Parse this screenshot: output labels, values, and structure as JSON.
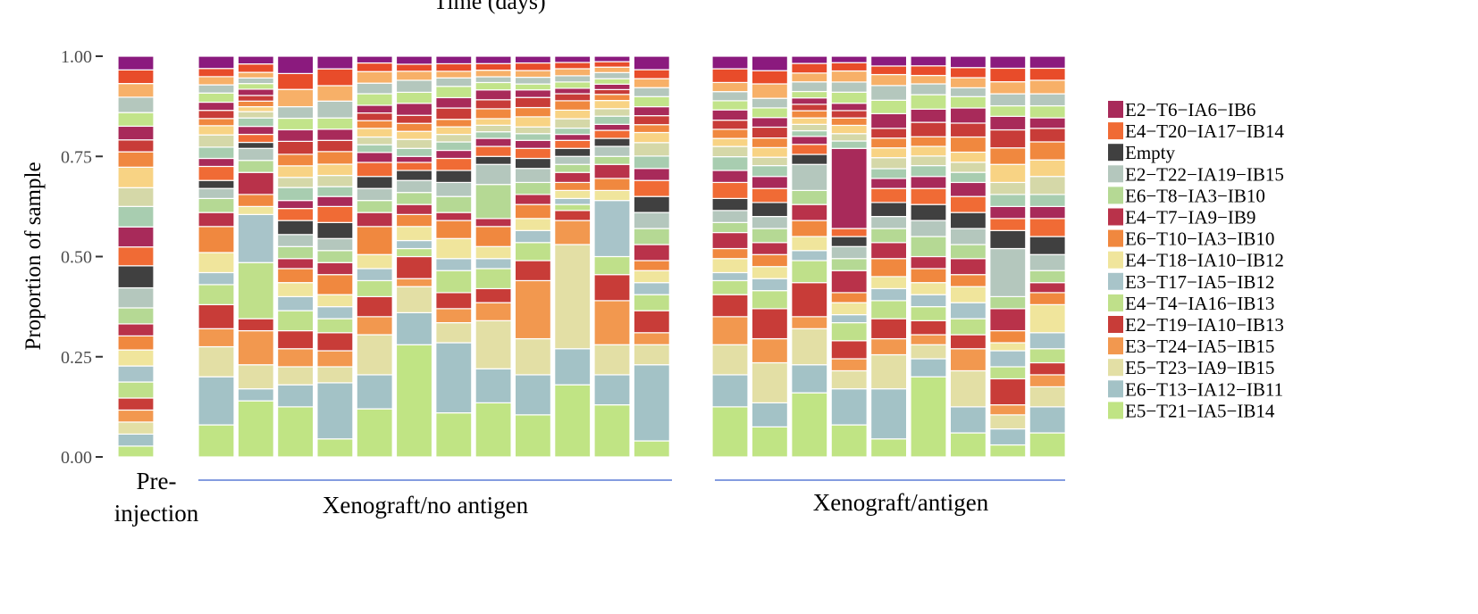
{
  "chart_data": {
    "type": "bar",
    "stacked": true,
    "title": "Time (days)",
    "xlabel": "",
    "ylabel": "Proportion of sample",
    "ylim": [
      0,
      1
    ],
    "yticks": [
      "0.00",
      "0.25",
      "0.50",
      "0.75",
      "1.00"
    ],
    "ytick_values": [
      0,
      0.25,
      0.5,
      0.75,
      1
    ],
    "groups": [
      {
        "label": "Pre-\ninjection",
        "label_lines": [
          "Pre-",
          "injection"
        ],
        "bars": 1,
        "underline": false
      },
      {
        "label": "Xenograft/no antigen",
        "label_lines": [
          "Xenograft/no antigen"
        ],
        "bars": 12,
        "underline": true
      },
      {
        "label": "Xenograft/antigen",
        "label_lines": [
          "Xenograft/antigen"
        ],
        "bars": 9,
        "underline": true
      }
    ],
    "series": [
      {
        "name": "E5−T21−IA5−IB14",
        "color": "#c0e484"
      },
      {
        "name": "E6−T13−IA12−IB11",
        "color": "#a3c2c6"
      },
      {
        "name": "E5−T23−IA9−IB15",
        "color": "#e3dfa5"
      },
      {
        "name": "E3−T24−IA5−IB15",
        "color": "#f2984f"
      },
      {
        "name": "E2−T19−IA10−IB13",
        "color": "#c83c38"
      },
      {
        "name": "E4−T4−IA16−IB13",
        "color": "#bfe08a"
      },
      {
        "name": "E3−T17−IA5−IB12",
        "color": "#a8c4c9"
      },
      {
        "name": "E4−T18−IA10−IB12",
        "color": "#f0e59c"
      },
      {
        "name": "E6−T10−IA3−IB10",
        "color": "#f0883f"
      },
      {
        "name": "E4−T7−IA9−IB9",
        "color": "#b9324a"
      },
      {
        "name": "E6−T8−IA3−IB10",
        "color": "#b5d994"
      },
      {
        "name": "E2−T22−IA19−IB15",
        "color": "#b4c7bd"
      },
      {
        "name": "Empty",
        "color": "#404040"
      },
      {
        "name": "E4−T20−IA17−IB14",
        "color": "#f06b35"
      },
      {
        "name": "E2−T6−IA6−IB6",
        "color": "#a82a5a"
      }
    ],
    "other_clones": {
      "colors": [
        "#a8cdb0",
        "#d5d8a8",
        "#f8d384",
        "#f0883f",
        "#c83c38",
        "#a82a5a",
        "#c2e48a",
        "#b4c7bd",
        "#f7b068",
        "#e84c2a",
        "#8b1a7e"
      ],
      "weights": [
        0.12,
        0.11,
        0.12,
        0.09,
        0.07,
        0.08,
        0.08,
        0.09,
        0.08,
        0.08,
        0.08
      ]
    },
    "bars": [
      [
        0.027,
        0.03,
        0.03,
        0.03,
        0.03,
        0.04,
        0.04,
        0.04,
        0.035,
        0.03,
        0.04,
        0.05,
        0.055,
        0.047,
        0.05
      ],
      [
        0.08,
        0.12,
        0.075,
        0.045,
        0.06,
        0.05,
        0.03,
        0.05,
        0.065,
        0.035,
        0.035,
        0.025,
        0.02,
        0.035,
        0.02
      ],
      [
        0.14,
        0.03,
        0.06,
        0.085,
        0.03,
        0.14,
        0.12,
        0.02,
        0.03,
        0.055,
        0.03,
        0.03,
        0.015,
        0.02,
        0.02
      ],
      [
        0.125,
        0.055,
        0.045,
        0.045,
        0.045,
        0.05,
        0.035,
        0.035,
        0.035,
        0.025,
        0.03,
        0.03,
        0.035,
        0.03,
        0.02
      ],
      [
        0.045,
        0.14,
        0.04,
        0.04,
        0.045,
        0.035,
        0.03,
        0.03,
        0.05,
        0.03,
        0.03,
        0.03,
        0.04,
        0.04,
        0.025
      ],
      [
        0.12,
        0.085,
        0.1,
        0.045,
        0.05,
        0.04,
        0.03,
        0.035,
        0.07,
        0.035,
        0.03,
        0.03,
        0.03,
        0.035,
        0.025
      ],
      [
        0.28,
        0.08,
        0.065,
        0.02,
        0.055,
        0.02,
        0.02,
        0.035,
        0.03,
        0.025,
        0.03,
        0.03,
        0.025,
        0.02,
        0.015
      ],
      [
        0.11,
        0.175,
        0.05,
        0.035,
        0.04,
        0.055,
        0.03,
        0.05,
        0.045,
        0.02,
        0.04,
        0.035,
        0.03,
        0.03,
        0.02
      ],
      [
        0.135,
        0.085,
        0.12,
        0.045,
        0.035,
        0.05,
        0.025,
        0.03,
        0.05,
        0.02,
        0.085,
        0.05,
        0.02,
        0.025,
        0.02
      ],
      [
        0.105,
        0.1,
        0.09,
        0.145,
        0.05,
        0.045,
        0.03,
        0.03,
        0.035,
        0.025,
        0.03,
        0.035,
        0.025,
        0.025,
        0.02
      ],
      [
        0.18,
        0.09,
        0.26,
        0.06,
        0.025,
        0.015,
        0.015,
        0.02,
        0.02,
        0.025,
        0.02,
        0.02,
        0.02,
        0.02,
        0.015
      ],
      [
        0.13,
        0.075,
        0.075,
        0.11,
        0.065,
        0.045,
        0.14,
        0.025,
        0.03,
        0.035,
        0.02,
        0.025,
        0.02,
        0.02,
        0.015
      ],
      [
        0.04,
        0.19,
        0.05,
        0.03,
        0.055,
        0.04,
        0.03,
        0.03,
        0.025,
        0.04,
        0.04,
        0.04,
        0.04,
        0.04,
        0.03
      ],
      [
        0.125,
        0.08,
        0.075,
        0.07,
        0.055,
        0.035,
        0.02,
        0.035,
        0.025,
        0.04,
        0.025,
        0.03,
        0.03,
        0.04,
        0.03
      ],
      [
        0.075,
        0.06,
        0.1,
        0.06,
        0.075,
        0.045,
        0.03,
        0.03,
        0.03,
        0.03,
        0.035,
        0.03,
        0.035,
        0.035,
        0.03
      ],
      [
        0.16,
        0.07,
        0.09,
        0.03,
        0.085,
        0.055,
        0.025,
        0.035,
        0.04,
        0.04,
        0.035,
        0.065,
        0.025,
        0.025,
        0.02
      ],
      [
        0.08,
        0.09,
        0.045,
        0.03,
        0.045,
        0.045,
        0.02,
        0.03,
        0.025,
        0.055,
        0.03,
        0.03,
        0.025,
        0.02,
        0.2
      ],
      [
        0.045,
        0.125,
        0.085,
        0.04,
        0.05,
        0.045,
        0.03,
        0.03,
        0.045,
        0.04,
        0.035,
        0.03,
        0.035,
        0.035,
        0.025
      ],
      [
        0.2,
        0.045,
        0.035,
        0.025,
        0.035,
        0.035,
        0.03,
        0.03,
        0.035,
        0.03,
        0.05,
        0.04,
        0.04,
        0.04,
        0.03
      ],
      [
        0.06,
        0.065,
        0.09,
        0.055,
        0.035,
        0.04,
        0.04,
        0.04,
        0.03,
        0.04,
        0.035,
        0.04,
        0.04,
        0.04,
        0.035
      ],
      [
        0.03,
        0.04,
        0.035,
        0.025,
        0.065,
        0.03,
        0.04,
        0.02,
        0.03,
        0.055,
        0.03,
        0.12,
        0.045,
        0.03,
        0.03
      ],
      [
        0.06,
        0.065,
        0.05,
        0.03,
        0.03,
        0.035,
        0.04,
        0.07,
        0.03,
        0.025,
        0.03,
        0.04,
        0.045,
        0.045,
        0.03
      ]
    ],
    "legend_position": "right",
    "grid": false
  }
}
